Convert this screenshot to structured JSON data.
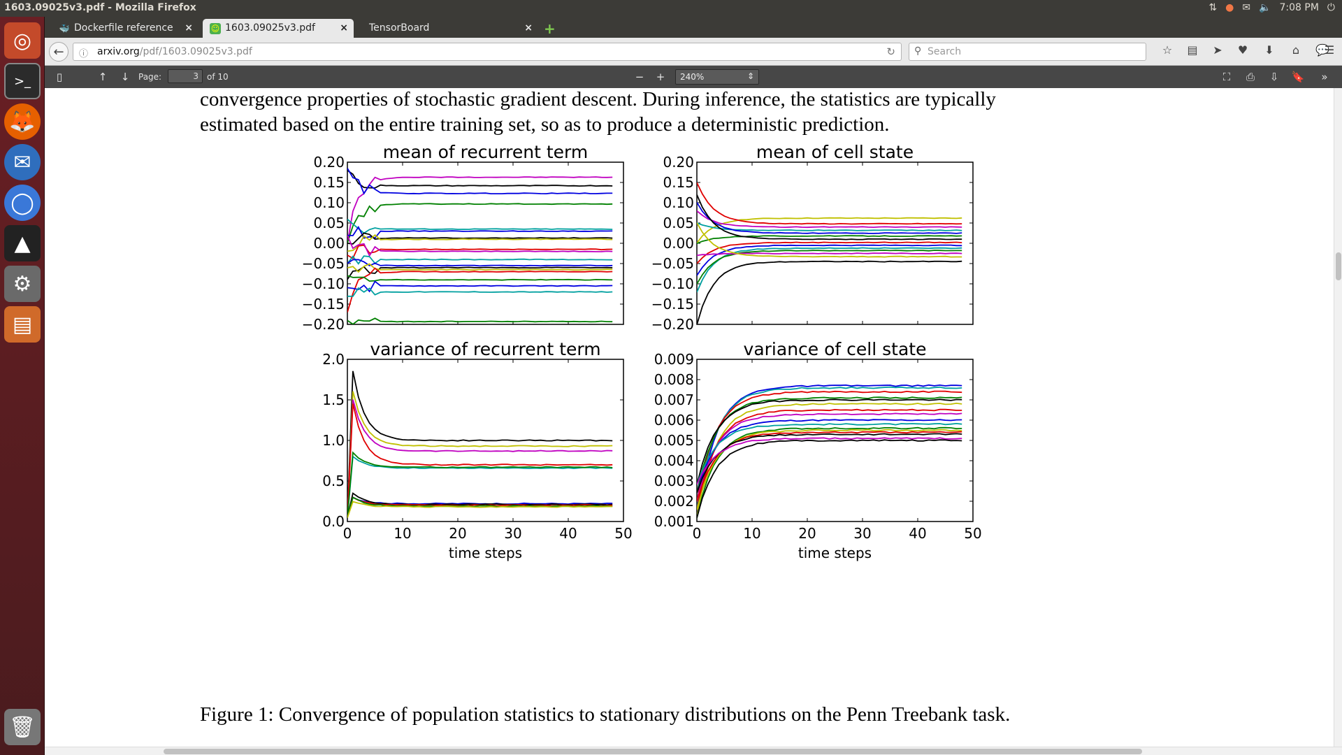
{
  "window": {
    "title": "1603.09025v3.pdf - Mozilla Firefox",
    "clock": "7:08 PM"
  },
  "tabs": [
    {
      "label": "Dockerfile reference",
      "icon": "docker-icon"
    },
    {
      "label": "1603.09025v3.pdf",
      "icon": "pdf-icon"
    },
    {
      "label": "TensorBoard",
      "icon": ""
    }
  ],
  "url": {
    "host": "arxiv.org",
    "path": "/pdf/1603.09025v3.pdf"
  },
  "search": {
    "placeholder": "Search"
  },
  "pdf_toolbar": {
    "page_label": "Page:",
    "page_value": "3",
    "page_total": "of 10",
    "zoom": "240%"
  },
  "document": {
    "line1": "convergence properties of stochastic gradient descent.  During inference, the statistics are typically",
    "line2": "estimated based on the entire training set, so as to produce a deterministic prediction.",
    "caption": "Figure 1: Convergence of population statistics to stationary distributions on the Penn Treebank task."
  },
  "chart_data": [
    {
      "type": "line",
      "title": "mean of recurrent term",
      "xlabel": "",
      "ylabel": "",
      "xlim": [
        0,
        50
      ],
      "ylim": [
        -0.2,
        0.2
      ],
      "xticks": [
        "0",
        "10",
        "20",
        "30",
        "40",
        "50"
      ],
      "yticks": [
        "0.20",
        "0.15",
        "0.10",
        "0.05",
        "0.00",
        "−0.05",
        "−0.10",
        "−0.15",
        "−0.20"
      ],
      "series": [
        {
          "color": "#c000c0",
          "start": 0.0,
          "final": 0.163
        },
        {
          "color": "#000000",
          "start": 0.18,
          "final": 0.142
        },
        {
          "color": "#0000e0",
          "start": 0.185,
          "final": 0.123
        },
        {
          "color": "#008000",
          "start": 0.0,
          "final": 0.097
        },
        {
          "color": "#00a0a0",
          "start": 0.06,
          "final": 0.035
        },
        {
          "color": "#0000e0",
          "start": 0.02,
          "final": 0.03
        },
        {
          "color": "#000000",
          "start": 0.0,
          "final": 0.013
        },
        {
          "color": "#c0c000",
          "start": -0.02,
          "final": 0.01
        },
        {
          "color": "#e00000",
          "start": -0.03,
          "final": -0.015
        },
        {
          "color": "#c000c0",
          "start": 0.02,
          "final": -0.02
        },
        {
          "color": "#00a0a0",
          "start": -0.05,
          "final": -0.04
        },
        {
          "color": "#0000e0",
          "start": -0.05,
          "final": -0.055
        },
        {
          "color": "#000000",
          "start": -0.09,
          "final": -0.06
        },
        {
          "color": "#c0c000",
          "start": -0.06,
          "final": -0.065
        },
        {
          "color": "#e00000",
          "start": -0.17,
          "final": -0.07
        },
        {
          "color": "#008000",
          "start": -0.08,
          "final": -0.09
        },
        {
          "color": "#0000e0",
          "start": -0.11,
          "final": -0.105
        },
        {
          "color": "#00a0a0",
          "start": -0.13,
          "final": -0.12
        },
        {
          "color": "#008000",
          "start": -0.19,
          "final": -0.193
        }
      ]
    },
    {
      "type": "line",
      "title": "mean of cell state",
      "xlabel": "",
      "ylabel": "",
      "xlim": [
        0,
        50
      ],
      "ylim": [
        -0.2,
        0.2
      ],
      "xticks": [
        "0",
        "10",
        "20",
        "30",
        "40",
        "50"
      ],
      "yticks": [
        "0.20",
        "0.15",
        "0.10",
        "0.05",
        "0.00",
        "−0.05",
        "−0.10",
        "−0.15",
        "−0.20"
      ],
      "series": [
        {
          "color": "#c0c000",
          "start": 0.0,
          "final": 0.062
        },
        {
          "color": "#e00000",
          "start": 0.15,
          "final": 0.048
        },
        {
          "color": "#c000c0",
          "start": 0.08,
          "final": 0.04
        },
        {
          "color": "#00a0a0",
          "start": 0.05,
          "final": 0.032
        },
        {
          "color": "#0000e0",
          "start": 0.1,
          "final": 0.025
        },
        {
          "color": "#008000",
          "start": 0.0,
          "final": 0.018
        },
        {
          "color": "#000000",
          "start": 0.12,
          "final": 0.01
        },
        {
          "color": "#e00000",
          "start": -0.05,
          "final": 0.002
        },
        {
          "color": "#0000e0",
          "start": -0.08,
          "final": -0.005
        },
        {
          "color": "#00a0a0",
          "start": -0.12,
          "final": -0.012
        },
        {
          "color": "#008000",
          "start": -0.1,
          "final": -0.018
        },
        {
          "color": "#c000c0",
          "start": -0.03,
          "final": -0.025
        },
        {
          "color": "#c0c000",
          "start": 0.05,
          "final": -0.033
        },
        {
          "color": "#000000",
          "start": -0.2,
          "final": -0.045
        }
      ]
    },
    {
      "type": "line",
      "title": "variance of recurrent term",
      "xlabel": "time steps",
      "ylabel": "",
      "xlim": [
        0,
        50
      ],
      "ylim": [
        0.0,
        2.0
      ],
      "xticks": [
        "0",
        "10",
        "20",
        "30",
        "40",
        "50"
      ],
      "yticks": [
        "2.0",
        "1.5",
        "1.0",
        "0.5",
        "0.0"
      ],
      "series": [
        {
          "color": "#000000",
          "peak": 1.85,
          "final": 1.0
        },
        {
          "color": "#c0c000",
          "peak": 1.6,
          "final": 0.93
        },
        {
          "color": "#c000c0",
          "peak": 1.5,
          "final": 0.87
        },
        {
          "color": "#e00000",
          "peak": 1.45,
          "final": 0.7
        },
        {
          "color": "#00a0a0",
          "peak": 0.8,
          "final": 0.66
        },
        {
          "color": "#008000",
          "peak": 0.85,
          "final": 0.67
        },
        {
          "color": "#0000e0",
          "peak": 0.3,
          "final": 0.22
        },
        {
          "color": "#000000",
          "peak": 0.35,
          "final": 0.21
        },
        {
          "color": "#e00000",
          "peak": 0.3,
          "final": 0.2
        },
        {
          "color": "#008000",
          "peak": 0.3,
          "final": 0.19
        },
        {
          "color": "#c0c000",
          "peak": 0.25,
          "final": 0.18
        }
      ]
    },
    {
      "type": "line",
      "title": "variance of cell state",
      "xlabel": "time steps",
      "ylabel": "",
      "xlim": [
        0,
        50
      ],
      "ylim": [
        0.001,
        0.009
      ],
      "xticks": [
        "0",
        "10",
        "20",
        "30",
        "40",
        "50"
      ],
      "yticks": [
        "0.009",
        "0.008",
        "0.007",
        "0.006",
        "0.005",
        "0.004",
        "0.003",
        "0.002",
        "0.001"
      ],
      "series": [
        {
          "color": "#0000e0",
          "final": 0.0077
        },
        {
          "color": "#00a0a0",
          "final": 0.0076
        },
        {
          "color": "#e00000",
          "final": 0.0074
        },
        {
          "color": "#008000",
          "final": 0.0071
        },
        {
          "color": "#000000",
          "final": 0.007
        },
        {
          "color": "#c0c000",
          "final": 0.0068
        },
        {
          "color": "#e00000",
          "final": 0.0065
        },
        {
          "color": "#c000c0",
          "final": 0.0063
        },
        {
          "color": "#0000e0",
          "final": 0.006
        },
        {
          "color": "#00a0a0",
          "final": 0.0058
        },
        {
          "color": "#008000",
          "final": 0.0056
        },
        {
          "color": "#c0c000",
          "final": 0.0055
        },
        {
          "color": "#e00000",
          "final": 0.0054
        },
        {
          "color": "#000000",
          "final": 0.0053
        },
        {
          "color": "#c000c0",
          "final": 0.0051
        },
        {
          "color": "#000000",
          "final": 0.005
        }
      ]
    }
  ]
}
